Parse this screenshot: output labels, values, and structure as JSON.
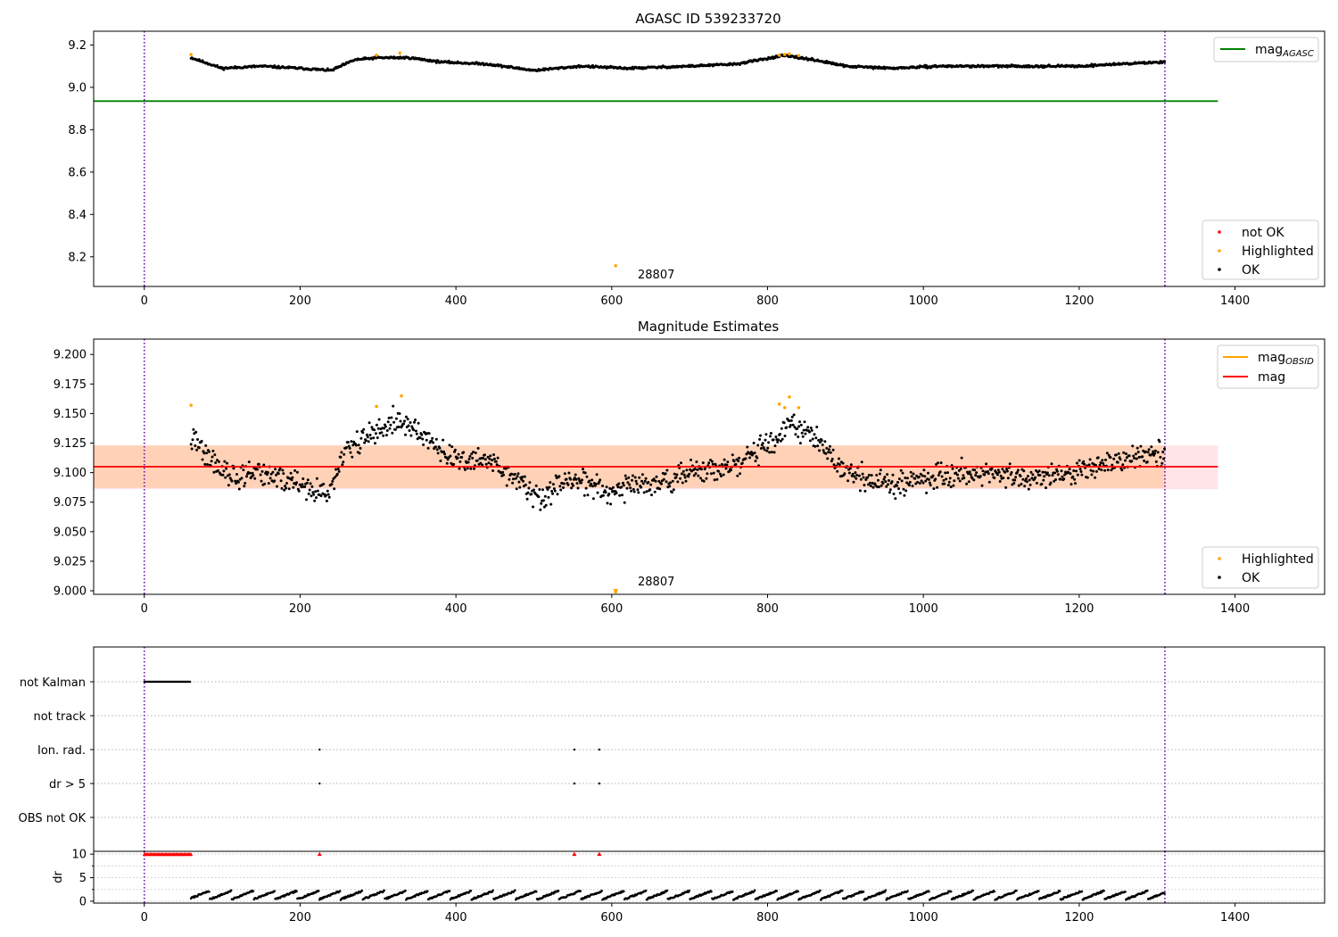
{
  "chart_data": [
    {
      "type": "scatter",
      "title": "AGASC ID 539233720",
      "xlim": [
        -65,
        1515
      ],
      "ylim": [
        8.06,
        9.265
      ],
      "xticks": [
        "0",
        "200",
        "400",
        "600",
        "800",
        "1000",
        "1200",
        "1400"
      ],
      "yticks": [
        "8.2",
        "8.4",
        "8.6",
        "8.8",
        "9.0",
        "9.2"
      ],
      "vlines": [
        0,
        1310
      ],
      "hline": {
        "value": 8.935,
        "from": -65,
        "to": 1378,
        "color": "#008000"
      },
      "series_shape": {
        "x_start": 60,
        "x_end": 1310,
        "base": 9.1,
        "knots": [
          [
            60,
            9.14
          ],
          [
            100,
            9.09
          ],
          [
            150,
            9.1
          ],
          [
            200,
            9.09
          ],
          [
            240,
            9.08
          ],
          [
            270,
            9.13
          ],
          [
            300,
            9.14
          ],
          [
            340,
            9.14
          ],
          [
            380,
            9.12
          ],
          [
            440,
            9.11
          ],
          [
            500,
            9.08
          ],
          [
            560,
            9.1
          ],
          [
            620,
            9.09
          ],
          [
            700,
            9.1
          ],
          [
            760,
            9.11
          ],
          [
            820,
            9.15
          ],
          [
            860,
            9.13
          ],
          [
            900,
            9.1
          ],
          [
            960,
            9.09
          ],
          [
            1020,
            9.1
          ],
          [
            1080,
            9.1
          ],
          [
            1140,
            9.1
          ],
          [
            1200,
            9.1
          ],
          [
            1250,
            9.11
          ],
          [
            1310,
            9.12
          ]
        ],
        "noise": 0.008
      },
      "highlighted": [
        [
          60,
          9.155
        ],
        [
          298,
          9.152
        ],
        [
          328,
          9.162
        ],
        [
          605,
          8.158
        ],
        [
          815,
          9.152
        ],
        [
          822,
          9.155
        ],
        [
          828,
          9.158
        ],
        [
          840,
          9.15
        ]
      ],
      "annotation": {
        "text": "28807",
        "x": 630,
        "y": 8.12
      },
      "legend_top": [
        {
          "label": "mag",
          "sub": "AGASC",
          "color": "#008000"
        }
      ],
      "legend_bottom": [
        {
          "label": "not OK",
          "color": "#ff0000"
        },
        {
          "label": "Highlighted",
          "color": "#ffa500"
        },
        {
          "label": "OK",
          "color": "#000000"
        }
      ]
    },
    {
      "type": "scatter",
      "title": "Magnitude Estimates",
      "xlim": [
        -65,
        1515
      ],
      "ylim": [
        8.997,
        9.213
      ],
      "xticks": [
        "0",
        "200",
        "400",
        "600",
        "800",
        "1000",
        "1200",
        "1400"
      ],
      "yticks": [
        "9.000",
        "9.025",
        "9.050",
        "9.075",
        "9.100",
        "9.125",
        "9.150",
        "9.175",
        "9.200"
      ],
      "vlines": [
        0,
        1310
      ],
      "mag_line": {
        "value": 9.105,
        "from": -65,
        "to": 1378,
        "color": "#ff0000"
      },
      "band_outer": {
        "low": 9.086,
        "high": 9.123,
        "color": "#ffe4e8"
      },
      "band_inner": {
        "low": 9.087,
        "high": 9.123,
        "from": -65,
        "to": 1310,
        "color": "#ffd2b8"
      },
      "series_shape": {
        "x_start": 60,
        "x_end": 1310,
        "knots": [
          [
            60,
            9.13
          ],
          [
            80,
            9.115
          ],
          [
            110,
            9.095
          ],
          [
            150,
            9.1
          ],
          [
            200,
            9.09
          ],
          [
            235,
            9.08
          ],
          [
            260,
            9.12
          ],
          [
            300,
            9.135
          ],
          [
            330,
            9.145
          ],
          [
            360,
            9.13
          ],
          [
            400,
            9.11
          ],
          [
            440,
            9.11
          ],
          [
            480,
            9.095
          ],
          [
            510,
            9.075
          ],
          [
            540,
            9.095
          ],
          [
            600,
            9.085
          ],
          [
            650,
            9.09
          ],
          [
            700,
            9.1
          ],
          [
            760,
            9.105
          ],
          [
            800,
            9.125
          ],
          [
            830,
            9.14
          ],
          [
            860,
            9.13
          ],
          [
            900,
            9.1
          ],
          [
            950,
            9.09
          ],
          [
            1000,
            9.095
          ],
          [
            1050,
            9.1
          ],
          [
            1100,
            9.1
          ],
          [
            1150,
            9.095
          ],
          [
            1200,
            9.1
          ],
          [
            1250,
            9.11
          ],
          [
            1310,
            9.115
          ]
        ],
        "noise": 0.009
      },
      "highlighted": [
        [
          60,
          9.157
        ],
        [
          298,
          9.156
        ],
        [
          330,
          9.165
        ],
        [
          815,
          9.158
        ],
        [
          822,
          9.155
        ],
        [
          828,
          9.164
        ],
        [
          840,
          9.155
        ],
        [
          605,
          8.999
        ]
      ],
      "annotation": {
        "text": "28807",
        "x": 630,
        "y": 9.001
      },
      "legend_top": [
        {
          "label": "mag",
          "sub": "OBSID",
          "color": "#ffa500"
        },
        {
          "label": "mag",
          "sub": "",
          "color": "#ff0000"
        }
      ],
      "legend_bottom": [
        {
          "label": "Highlighted",
          "color": "#ffa500"
        },
        {
          "label": "OK",
          "color": "#000000"
        }
      ]
    },
    {
      "type": "scatter",
      "title": "",
      "xlim": [
        -65,
        1515
      ],
      "categories": [
        "not Kalman",
        "not track",
        "Ion. rad.",
        "dr > 5",
        "OBS not OK"
      ],
      "vlines": [
        0,
        1310
      ],
      "flag_points": {
        "not Kalman": {
          "from": 0,
          "to": 60
        },
        "not track": [],
        "Ion. rad.": [
          225,
          552,
          584
        ],
        "dr > 5": [
          225,
          552,
          584
        ],
        "OBS not OK": []
      }
    },
    {
      "type": "scatter",
      "title": "",
      "xlim": [
        -65,
        1515
      ],
      "ylim": [
        -0.4,
        10.6
      ],
      "ylabel": "dr",
      "xticks": [
        "0",
        "200",
        "400",
        "600",
        "800",
        "1000",
        "1200",
        "1400"
      ],
      "yticks": [
        "0",
        "5",
        "10"
      ],
      "vlines": [
        0,
        1310
      ],
      "capped": {
        "value": 10,
        "from": 0,
        "to": 60,
        "extra": [
          225,
          552,
          584
        ],
        "color": "#ff0000"
      },
      "series_shape": {
        "x_start": 60,
        "x_end": 1310,
        "mean": 1.2,
        "amp": 0.9
      }
    }
  ]
}
